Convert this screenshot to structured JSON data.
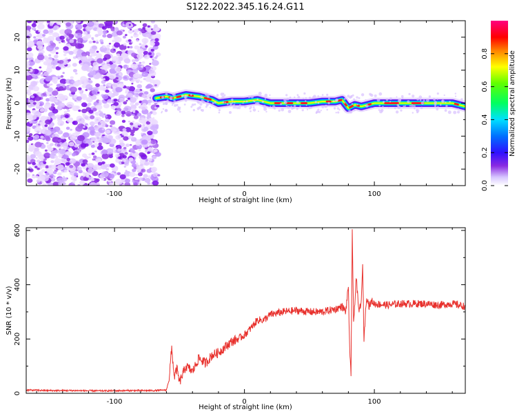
{
  "title": "S122.2022.345.16.24.G11",
  "colors": {
    "snr_line": "#e8302c",
    "noise_purple": "#8a2be2",
    "colormap": [
      "#f0f0ff",
      "#8a2be2",
      "#4010ff",
      "#0070ff",
      "#00e0ff",
      "#00ff60",
      "#ffff00",
      "#ff8000",
      "#ff0000",
      "#ff0080"
    ]
  },
  "chart_data": [
    {
      "type": "heatmap",
      "name_key": "spectrogram",
      "xlabel": "Height of straight line (km)",
      "ylabel": "Frequency (Hz)",
      "xlim": [
        -168,
        170
      ],
      "ylim": [
        -25,
        25
      ],
      "xticks": [
        -100,
        0,
        100
      ],
      "yticks": [
        -20,
        -10,
        0,
        10,
        20
      ],
      "colorbar": {
        "label": "Normalized spectral amplitude",
        "range": [
          0,
          1
        ],
        "ticks": [
          "0.0",
          "0.2",
          "0.4",
          "0.6",
          "0.8"
        ],
        "tick_values": [
          0,
          0.2,
          0.4,
          0.6,
          0.8
        ]
      },
      "noise_region_x": [
        -168,
        -68
      ],
      "signal_ridge": {
        "x": [
          -68,
          -60,
          -55,
          -45,
          -35,
          -25,
          -20,
          -10,
          0,
          10,
          20,
          30,
          40,
          50,
          60,
          70,
          75,
          80,
          85,
          90,
          100,
          120,
          140,
          160,
          170
        ],
        "y": [
          1.5,
          2.0,
          1.5,
          2.5,
          2.0,
          1.0,
          0.0,
          0.5,
          0.5,
          1.0,
          0.0,
          0.0,
          0.0,
          0.0,
          0.5,
          0.5,
          1.0,
          -1.5,
          -0.5,
          -1.0,
          0.0,
          0.0,
          0.0,
          0.0,
          -1.0
        ]
      }
    },
    {
      "type": "line",
      "name_key": "snr",
      "xlabel": "Height of straight line (km)",
      "ylabel": "SNR (10 * v/v)",
      "xlim": [
        -168,
        170
      ],
      "ylim": [
        0,
        610
      ],
      "xticks": [
        -100,
        0,
        100
      ],
      "yticks": [
        0,
        200,
        400,
        600
      ],
      "x": [
        -168,
        -150,
        -130,
        -110,
        -90,
        -70,
        -60,
        -58,
        -56,
        -54,
        -52,
        -50,
        -45,
        -40,
        -35,
        -30,
        -25,
        -20,
        -15,
        -10,
        -5,
        0,
        5,
        10,
        15,
        20,
        25,
        30,
        40,
        50,
        60,
        70,
        75,
        78,
        80,
        81,
        82,
        83,
        84,
        86,
        88,
        90,
        91,
        92,
        94,
        96,
        98,
        100,
        110,
        120,
        130,
        140,
        150,
        160,
        170
      ],
      "y": [
        12,
        10,
        10,
        9,
        10,
        10,
        12,
        55,
        165,
        60,
        90,
        40,
        100,
        80,
        130,
        110,
        140,
        150,
        170,
        190,
        200,
        215,
        240,
        270,
        270,
        290,
        295,
        300,
        305,
        300,
        300,
        310,
        320,
        300,
        395,
        150,
        60,
        605,
        250,
        430,
        300,
        340,
        470,
        200,
        360,
        320,
        340,
        330,
        325,
        330,
        330,
        330,
        325,
        330,
        320
      ]
    }
  ]
}
